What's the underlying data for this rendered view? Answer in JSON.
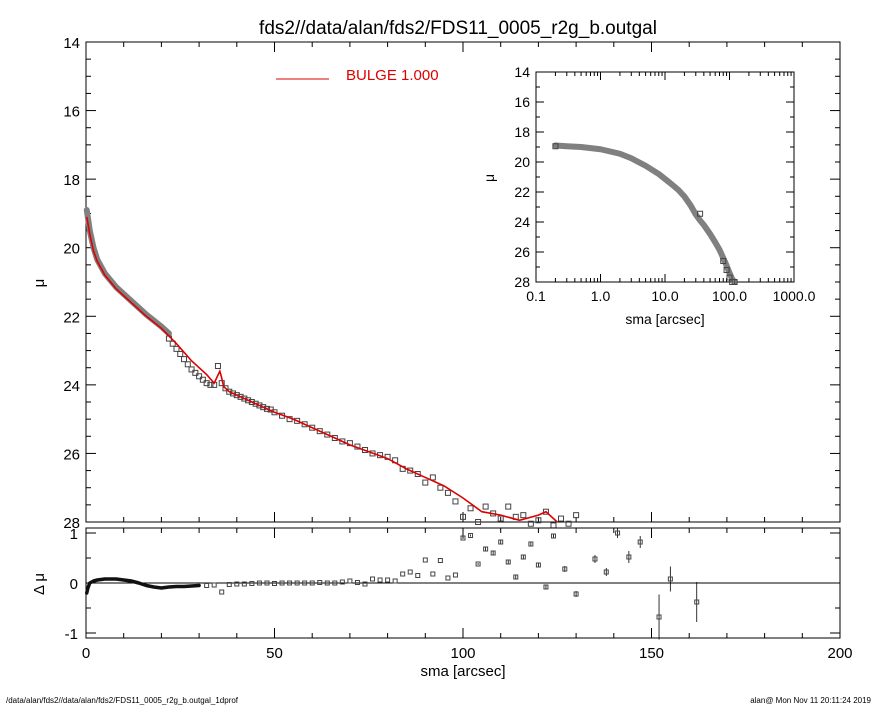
{
  "title": "fds2//data/alan/fds2/FDS11_0005_r2g_b.outgal",
  "legend": {
    "label": "BULGE  1.000",
    "color": "#dd0000"
  },
  "footer": {
    "left": "/data/alan/fds2//data/alan/fds2/FDS11_0005_r2g_b.outgal_1dprof",
    "right": "alan@  Mon Nov 11 20:11:24 2019"
  },
  "colors": {
    "model": "#dd0000",
    "data_band": "#808080",
    "points": "#444444"
  },
  "chart_data": [
    {
      "id": "main-profile",
      "type": "scatter",
      "ylabel": "μ",
      "xlim": [
        0,
        200
      ],
      "ylim": [
        28,
        14
      ],
      "y_inverted": true,
      "yticks": [
        14,
        16,
        18,
        20,
        22,
        24,
        26,
        28
      ],
      "series": [
        {
          "name": "BULGE  1.000",
          "type": "line",
          "x": [
            0.2,
            1,
            2,
            3,
            5,
            8,
            12,
            16,
            20,
            24,
            28,
            32,
            34,
            35.5,
            36,
            36.5,
            38,
            42,
            46,
            50,
            55,
            60,
            65,
            70,
            75,
            80,
            85,
            90,
            95,
            100,
            105,
            110,
            115,
            120,
            122,
            125
          ],
          "y": [
            19.1,
            19.6,
            20.1,
            20.4,
            20.8,
            21.2,
            21.6,
            22.0,
            22.35,
            22.8,
            23.3,
            23.7,
            23.95,
            23.6,
            23.8,
            24.05,
            24.2,
            24.4,
            24.6,
            24.8,
            25.0,
            25.25,
            25.5,
            25.75,
            25.95,
            26.15,
            26.45,
            26.7,
            26.95,
            27.3,
            27.7,
            27.8,
            27.95,
            27.8,
            27.7,
            28.0
          ]
        },
        {
          "name": "data-band",
          "type": "line",
          "x": [
            0.2,
            1,
            2,
            3,
            5,
            8,
            12,
            16,
            20,
            22
          ],
          "y": [
            18.9,
            19.5,
            20.0,
            20.35,
            20.75,
            21.15,
            21.55,
            21.95,
            22.3,
            22.5
          ]
        },
        {
          "name": "isophotes",
          "type": "scatter",
          "x": [
            22,
            23,
            24,
            25,
            26,
            27,
            28,
            29,
            30,
            31,
            32,
            33,
            34,
            35,
            36,
            37,
            38,
            39,
            40,
            41,
            42,
            43,
            44,
            45,
            46,
            47,
            48,
            49,
            50,
            52,
            54,
            56,
            58,
            60,
            62,
            64,
            66,
            68,
            70,
            72,
            74,
            76,
            78,
            80,
            82,
            84,
            86,
            88,
            90,
            92,
            94,
            96,
            98,
            100,
            102,
            104,
            106,
            108,
            110,
            112,
            114,
            116,
            118,
            120,
            122,
            124,
            126,
            128,
            130
          ],
          "y": [
            22.65,
            22.8,
            22.95,
            23.1,
            23.25,
            23.4,
            23.55,
            23.65,
            23.75,
            23.85,
            23.95,
            24.0,
            24.0,
            23.45,
            23.95,
            24.1,
            24.2,
            24.25,
            24.3,
            24.35,
            24.4,
            24.45,
            24.5,
            24.55,
            24.6,
            24.65,
            24.7,
            24.72,
            24.8,
            24.9,
            25.0,
            25.05,
            25.15,
            25.25,
            25.35,
            25.45,
            25.55,
            25.65,
            25.7,
            25.8,
            25.9,
            26.0,
            26.05,
            26.1,
            26.2,
            26.45,
            26.5,
            26.6,
            26.85,
            26.7,
            27.0,
            27.15,
            27.4,
            27.85,
            27.6,
            28.0,
            27.55,
            27.75,
            27.9,
            27.55,
            27.85,
            27.8,
            28.05,
            27.95,
            27.7,
            28.1,
            27.9,
            28.05,
            27.8
          ]
        }
      ]
    },
    {
      "id": "inset-log-profile",
      "type": "scatter",
      "xlabel": "sma [arcsec]",
      "ylabel": "μ",
      "x_scale": "log",
      "xlim": [
        0.1,
        1000
      ],
      "ylim": [
        28,
        14
      ],
      "y_inverted": true,
      "xtick_labels": [
        "0.1",
        "1.0",
        "10.0",
        "100.0",
        "1000.0"
      ],
      "xticks": [
        0.1,
        1,
        10,
        100,
        1000
      ],
      "yticks": [
        14,
        16,
        18,
        20,
        22,
        24,
        26,
        28
      ],
      "series": [
        {
          "name": "inset-profile",
          "type": "line",
          "x": [
            0.2,
            0.3,
            0.5,
            1,
            2,
            3,
            5,
            8,
            12,
            16,
            20,
            25,
            30,
            35,
            40,
            50,
            60,
            70,
            80,
            90,
            100,
            110,
            120
          ],
          "y": [
            18.9,
            18.95,
            19.0,
            19.15,
            19.45,
            19.75,
            20.25,
            20.8,
            21.4,
            21.85,
            22.3,
            22.9,
            23.5,
            23.9,
            24.2,
            24.8,
            25.35,
            25.85,
            26.4,
            26.9,
            27.4,
            27.8,
            28.0
          ]
        },
        {
          "name": "inset-points",
          "type": "scatter",
          "x": [
            0.2,
            35,
            80,
            90,
            100,
            110,
            120
          ],
          "y": [
            18.95,
            23.45,
            26.6,
            27.2,
            27.7,
            28.0,
            28.0
          ]
        }
      ]
    },
    {
      "id": "residuals",
      "type": "scatter",
      "xlabel": "sma [arcsec]",
      "ylabel": "Δ μ",
      "xlim": [
        0,
        200
      ],
      "ylim": [
        -1.1,
        1.1
      ],
      "xticks": [
        0,
        50,
        100,
        150,
        200
      ],
      "yticks": [
        -1,
        0,
        1
      ],
      "zero_line": true,
      "series": [
        {
          "name": "residual-band",
          "type": "line",
          "x": [
            0.2,
            0.5,
            1,
            2,
            3,
            4,
            5,
            6,
            7,
            8,
            9,
            10,
            12,
            14,
            16,
            18,
            20,
            22,
            24,
            26,
            28,
            30
          ],
          "y": [
            -0.2,
            -0.1,
            0.0,
            0.04,
            0.06,
            0.07,
            0.08,
            0.08,
            0.08,
            0.08,
            0.07,
            0.06,
            0.04,
            0.0,
            -0.05,
            -0.08,
            -0.1,
            -0.08,
            -0.07,
            -0.07,
            -0.06,
            -0.05
          ]
        },
        {
          "name": "residual-points",
          "type": "scatter",
          "x": [
            32,
            34,
            36,
            38,
            40,
            42,
            44,
            46,
            48,
            50,
            52,
            54,
            56,
            58,
            60,
            62,
            64,
            66,
            68,
            70,
            72,
            74,
            76,
            78,
            80,
            82,
            84,
            86,
            88,
            90,
            92,
            94,
            96,
            98,
            100,
            102,
            104,
            106,
            108,
            110,
            112,
            114,
            116,
            118,
            120,
            122,
            124,
            127,
            130,
            135,
            138,
            141,
            144,
            147,
            152,
            155,
            162
          ],
          "y": [
            -0.05,
            -0.04,
            -0.18,
            -0.03,
            -0.02,
            -0.02,
            -0.01,
            0.0,
            0.0,
            -0.01,
            0.0,
            0.0,
            0.0,
            0.0,
            0.0,
            0.01,
            0.0,
            0.0,
            0.02,
            0.04,
            0.01,
            -0.02,
            0.08,
            0.06,
            0.06,
            0.04,
            0.18,
            0.22,
            0.15,
            0.46,
            0.18,
            0.45,
            0.1,
            0.16,
            0.9,
            0.95,
            0.38,
            0.68,
            0.6,
            0.82,
            0.42,
            0.12,
            0.52,
            0.78,
            0.36,
            -0.08,
            0.94,
            0.28,
            -0.22,
            0.48,
            0.22,
            1.0,
            0.52,
            0.82,
            -0.68,
            0.08,
            -0.38
          ],
          "err": [
            0,
            0,
            0,
            0,
            0,
            0,
            0,
            0,
            0,
            0,
            0,
            0,
            0,
            0,
            0,
            0,
            0,
            0,
            0,
            0,
            0,
            0,
            0,
            0,
            0,
            0,
            0,
            0,
            0,
            0,
            0,
            0,
            0,
            0,
            0.02,
            0.02,
            0.02,
            0.03,
            0.03,
            0.03,
            0.03,
            0.03,
            0.04,
            0.04,
            0.04,
            0.05,
            0.05,
            0.06,
            0.06,
            0.08,
            0.08,
            0.1,
            0.12,
            0.12,
            0.45,
            0.25,
            0.4
          ]
        }
      ]
    }
  ]
}
